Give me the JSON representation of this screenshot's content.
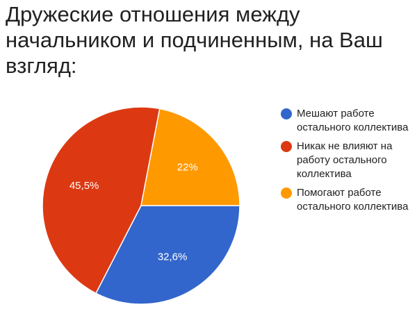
{
  "title": "Дружеские отношения между начальником и подчиненным, на Ваш взгляд:",
  "chart_data": {
    "type": "pie",
    "legend_position": "right",
    "slices": [
      {
        "label": "Мешают работе остального коллектива",
        "value": 32.6,
        "value_label": "32,6%",
        "color": "#3366cc"
      },
      {
        "label": "Никак не влияют на работу остального коллектива",
        "value": 45.5,
        "value_label": "45,5%",
        "color": "#dc3912"
      },
      {
        "label": "Помогают работе остального коллектива",
        "value": 22,
        "value_label": "22%",
        "color": "#ff9900"
      }
    ]
  }
}
